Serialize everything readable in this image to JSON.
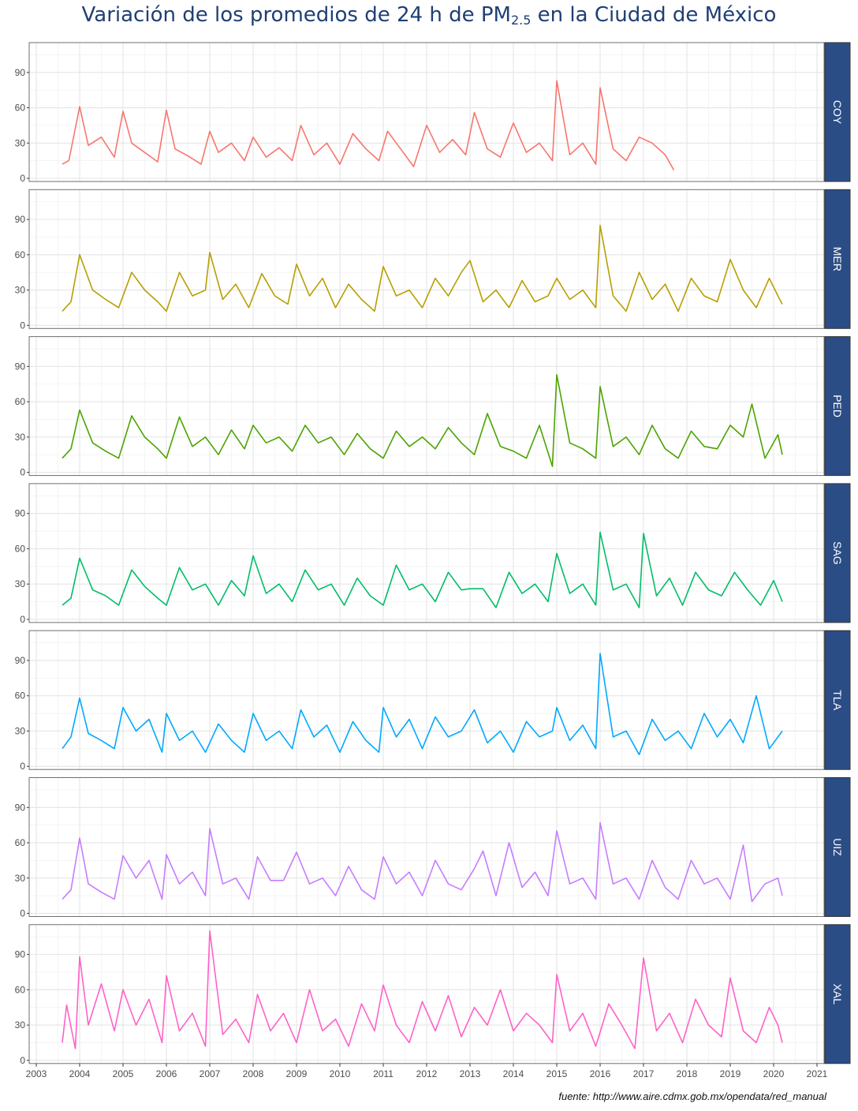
{
  "title": {
    "prefix": "Variación de los promedios de 24 h de PM",
    "subscript": "2.5",
    "suffix": " en la Ciudad de México"
  },
  "source": "fuente: http://www.aire.cdmx.gob.mx/opendata/red_manual",
  "colors": {
    "strip": "#2b4d86",
    "grid_major": "#e5e5e5",
    "grid_minor": "#f2f2f2",
    "panel_border": "#6e6e6e"
  },
  "chart_data": {
    "type": "line",
    "facet": "rows",
    "x_unit": "year",
    "xlim": [
      2003,
      2021
    ],
    "x_ticks": [
      "2003",
      "2004",
      "2005",
      "2006",
      "2007",
      "2008",
      "2009",
      "2010",
      "2011",
      "2012",
      "2013",
      "2014",
      "2015",
      "2016",
      "2017",
      "2018",
      "2019",
      "2020",
      "2021"
    ],
    "ylim": [
      0,
      110
    ],
    "y_ticks": [
      "0",
      "30",
      "60",
      "90"
    ],
    "grid": true,
    "series": [
      {
        "name": "COY",
        "color": "#f8766d",
        "x": [
          2003.6,
          2003.75,
          2004,
          2004.2,
          2004.5,
          2004.8,
          2005,
          2005.2,
          2005.5,
          2005.8,
          2006,
          2006.2,
          2006.5,
          2006.8,
          2007,
          2007.2,
          2007.5,
          2007.8,
          2008,
          2008.3,
          2008.6,
          2008.9,
          2009.1,
          2009.4,
          2009.7,
          2010,
          2010.3,
          2010.6,
          2010.9,
          2011.1,
          2011.4,
          2011.7,
          2012,
          2012.3,
          2012.6,
          2012.9,
          2013.1,
          2013.4,
          2013.7,
          2014,
          2014.3,
          2014.6,
          2014.9,
          2015,
          2015.3,
          2015.6,
          2015.9,
          2016,
          2016.3,
          2016.6,
          2016.9,
          2017.2,
          2017.5,
          2017.7
        ],
        "y": [
          12,
          15,
          61,
          28,
          35,
          18,
          57,
          30,
          22,
          14,
          58,
          25,
          19,
          12,
          40,
          22,
          30,
          15,
          35,
          18,
          26,
          15,
          45,
          20,
          30,
          12,
          38,
          25,
          15,
          40,
          25,
          10,
          45,
          22,
          33,
          20,
          56,
          25,
          18,
          47,
          22,
          30,
          15,
          83,
          20,
          30,
          12,
          77,
          25,
          15,
          35,
          30,
          20,
          7
        ]
      },
      {
        "name": "MER",
        "color": "#b79f00",
        "x": [
          2003.6,
          2003.8,
          2004,
          2004.3,
          2004.6,
          2004.9,
          2005.2,
          2005.5,
          2005.8,
          2006,
          2006.3,
          2006.6,
          2006.9,
          2007,
          2007.3,
          2007.6,
          2007.9,
          2008.2,
          2008.5,
          2008.8,
          2009,
          2009.3,
          2009.6,
          2009.9,
          2010.2,
          2010.5,
          2010.8,
          2011,
          2011.3,
          2011.6,
          2011.9,
          2012.2,
          2012.5,
          2012.8,
          2013,
          2013.3,
          2013.6,
          2013.9,
          2014.2,
          2014.5,
          2014.8,
          2015,
          2015.3,
          2015.6,
          2015.9,
          2016,
          2016.3,
          2016.6,
          2016.9,
          2017.2,
          2017.5,
          2017.8,
          2018.1,
          2018.4,
          2018.7,
          2019,
          2019.3,
          2019.6,
          2019.9,
          2020.1,
          2020.2
        ],
        "y": [
          12,
          20,
          60,
          30,
          22,
          15,
          45,
          30,
          20,
          12,
          45,
          25,
          30,
          62,
          22,
          35,
          15,
          44,
          25,
          18,
          52,
          25,
          40,
          15,
          35,
          22,
          12,
          50,
          25,
          30,
          15,
          40,
          25,
          45,
          55,
          20,
          30,
          15,
          38,
          20,
          25,
          40,
          22,
          30,
          15,
          85,
          25,
          12,
          45,
          22,
          35,
          12,
          40,
          25,
          20,
          56,
          30,
          15,
          40,
          25,
          18
        ]
      },
      {
        "name": "PED",
        "color": "#4ba400",
        "x": [
          2003.6,
          2003.8,
          2004,
          2004.3,
          2004.6,
          2004.9,
          2005.2,
          2005.5,
          2005.8,
          2006,
          2006.3,
          2006.6,
          2006.9,
          2007.2,
          2007.5,
          2007.8,
          2008,
          2008.3,
          2008.6,
          2008.9,
          2009.2,
          2009.5,
          2009.8,
          2010.1,
          2010.4,
          2010.7,
          2011,
          2011.3,
          2011.6,
          2011.9,
          2012.2,
          2012.5,
          2012.8,
          2013.1,
          2013.4,
          2013.7,
          2014,
          2014.3,
          2014.6,
          2014.9,
          2015,
          2015.3,
          2015.6,
          2015.9,
          2016,
          2016.3,
          2016.6,
          2016.9,
          2017.2,
          2017.5,
          2017.8,
          2018.1,
          2018.4,
          2018.7,
          2019,
          2019.3,
          2019.5,
          2019.8,
          2020.1,
          2020.2
        ],
        "y": [
          12,
          20,
          53,
          25,
          18,
          12,
          48,
          30,
          20,
          12,
          47,
          22,
          30,
          15,
          36,
          20,
          40,
          25,
          30,
          18,
          40,
          25,
          30,
          15,
          33,
          20,
          12,
          35,
          22,
          30,
          20,
          38,
          25,
          15,
          50,
          22,
          18,
          12,
          40,
          5,
          83,
          25,
          20,
          12,
          73,
          22,
          30,
          15,
          40,
          20,
          12,
          35,
          22,
          20,
          40,
          30,
          58,
          12,
          32,
          15
        ]
      },
      {
        "name": "SAG",
        "color": "#00be67",
        "x": [
          2003.6,
          2003.8,
          2004,
          2004.3,
          2004.6,
          2004.9,
          2005.2,
          2005.5,
          2005.8,
          2006,
          2006.3,
          2006.6,
          2006.9,
          2007.2,
          2007.5,
          2007.8,
          2008,
          2008.3,
          2008.6,
          2008.9,
          2009.2,
          2009.5,
          2009.8,
          2010.1,
          2010.4,
          2010.7,
          2011,
          2011.3,
          2011.6,
          2011.9,
          2012.2,
          2012.5,
          2012.8,
          2013,
          2013.3,
          2013.6,
          2013.9,
          2014.2,
          2014.5,
          2014.8,
          2015,
          2015.3,
          2015.6,
          2015.9,
          2016,
          2016.3,
          2016.6,
          2016.9,
          2017,
          2017.3,
          2017.6,
          2017.9,
          2018.2,
          2018.5,
          2018.8,
          2019.1,
          2019.4,
          2019.7,
          2020,
          2020.2
        ],
        "y": [
          12,
          18,
          52,
          25,
          20,
          12,
          42,
          28,
          18,
          12,
          44,
          25,
          30,
          12,
          33,
          20,
          54,
          22,
          30,
          15,
          42,
          25,
          30,
          12,
          35,
          20,
          12,
          46,
          25,
          30,
          15,
          40,
          25,
          26,
          26,
          10,
          40,
          22,
          30,
          15,
          56,
          22,
          30,
          12,
          74,
          25,
          30,
          10,
          73,
          20,
          35,
          12,
          40,
          25,
          20,
          40,
          25,
          12,
          33,
          15
        ]
      },
      {
        "name": "TLA",
        "color": "#00a9ff",
        "x": [
          2003.6,
          2003.8,
          2004,
          2004.2,
          2004.5,
          2004.8,
          2005,
          2005.3,
          2005.6,
          2005.9,
          2006,
          2006.3,
          2006.6,
          2006.9,
          2007.2,
          2007.5,
          2007.8,
          2008,
          2008.3,
          2008.6,
          2008.9,
          2009.1,
          2009.4,
          2009.7,
          2010,
          2010.3,
          2010.6,
          2010.9,
          2011,
          2011.3,
          2011.6,
          2011.9,
          2012.2,
          2012.5,
          2012.8,
          2013.1,
          2013.4,
          2013.7,
          2014,
          2014.3,
          2014.6,
          2014.9,
          2015,
          2015.3,
          2015.6,
          2015.9,
          2016,
          2016.3,
          2016.6,
          2016.9,
          2017.2,
          2017.5,
          2017.8,
          2018.1,
          2018.4,
          2018.7,
          2019,
          2019.3,
          2019.6,
          2019.9,
          2020.2
        ],
        "y": [
          15,
          25,
          58,
          28,
          22,
          15,
          50,
          30,
          40,
          12,
          45,
          22,
          30,
          12,
          36,
          22,
          12,
          45,
          22,
          30,
          15,
          48,
          25,
          35,
          12,
          38,
          22,
          12,
          50,
          25,
          40,
          15,
          42,
          25,
          30,
          48,
          20,
          30,
          12,
          38,
          25,
          30,
          50,
          22,
          35,
          15,
          96,
          25,
          30,
          10,
          40,
          22,
          30,
          15,
          45,
          25,
          40,
          20,
          60,
          15,
          30
        ]
      },
      {
        "name": "UIZ",
        "color": "#c77cff",
        "x": [
          2003.6,
          2003.8,
          2004,
          2004.2,
          2004.5,
          2004.8,
          2005,
          2005.3,
          2005.6,
          2005.9,
          2006,
          2006.3,
          2006.6,
          2006.9,
          2007,
          2007.3,
          2007.6,
          2007.9,
          2008.1,
          2008.4,
          2008.7,
          2009,
          2009.3,
          2009.6,
          2009.9,
          2010.2,
          2010.5,
          2010.8,
          2011,
          2011.3,
          2011.6,
          2011.9,
          2012.2,
          2012.5,
          2012.8,
          2013.1,
          2013.3,
          2013.6,
          2013.9,
          2014.2,
          2014.5,
          2014.8,
          2015,
          2015.3,
          2015.6,
          2015.9,
          2016,
          2016.3,
          2016.6,
          2016.9,
          2017.2,
          2017.5,
          2017.8,
          2018.1,
          2018.4,
          2018.7,
          2019,
          2019.3,
          2019.5,
          2019.8,
          2020.1,
          2020.2
        ],
        "y": [
          12,
          20,
          64,
          25,
          18,
          12,
          49,
          30,
          45,
          12,
          50,
          25,
          35,
          15,
          72,
          25,
          30,
          12,
          48,
          28,
          28,
          52,
          25,
          30,
          15,
          40,
          20,
          12,
          48,
          25,
          35,
          15,
          45,
          25,
          20,
          38,
          53,
          15,
          60,
          22,
          35,
          15,
          70,
          25,
          30,
          12,
          77,
          25,
          30,
          12,
          45,
          22,
          12,
          45,
          25,
          30,
          12,
          58,
          10,
          25,
          30,
          15
        ]
      },
      {
        "name": "XAL",
        "color": "#ff61c9",
        "x": [
          2003.6,
          2003.7,
          2003.9,
          2004,
          2004.2,
          2004.5,
          2004.8,
          2005,
          2005.3,
          2005.6,
          2005.9,
          2006,
          2006.3,
          2006.6,
          2006.9,
          2007,
          2007.3,
          2007.6,
          2007.9,
          2008.1,
          2008.4,
          2008.7,
          2009,
          2009.3,
          2009.6,
          2009.9,
          2010.2,
          2010.5,
          2010.8,
          2011,
          2011.3,
          2011.6,
          2011.9,
          2012.2,
          2012.5,
          2012.8,
          2013.1,
          2013.4,
          2013.7,
          2014,
          2014.3,
          2014.6,
          2014.9,
          2015,
          2015.3,
          2015.6,
          2015.9,
          2016.2,
          2016.5,
          2016.8,
          2017,
          2017.3,
          2017.6,
          2017.9,
          2018.2,
          2018.5,
          2018.8,
          2019,
          2019.3,
          2019.6,
          2019.9,
          2020.1,
          2020.2
        ],
        "y": [
          15,
          47,
          10,
          88,
          30,
          65,
          25,
          60,
          30,
          52,
          15,
          72,
          25,
          40,
          12,
          110,
          22,
          35,
          15,
          56,
          25,
          40,
          15,
          60,
          25,
          35,
          12,
          48,
          25,
          64,
          30,
          15,
          50,
          25,
          55,
          20,
          45,
          30,
          60,
          25,
          40,
          30,
          15,
          73,
          25,
          40,
          12,
          48,
          30,
          10,
          87,
          25,
          40,
          15,
          52,
          30,
          20,
          70,
          25,
          15,
          45,
          30,
          15
        ]
      }
    ]
  }
}
